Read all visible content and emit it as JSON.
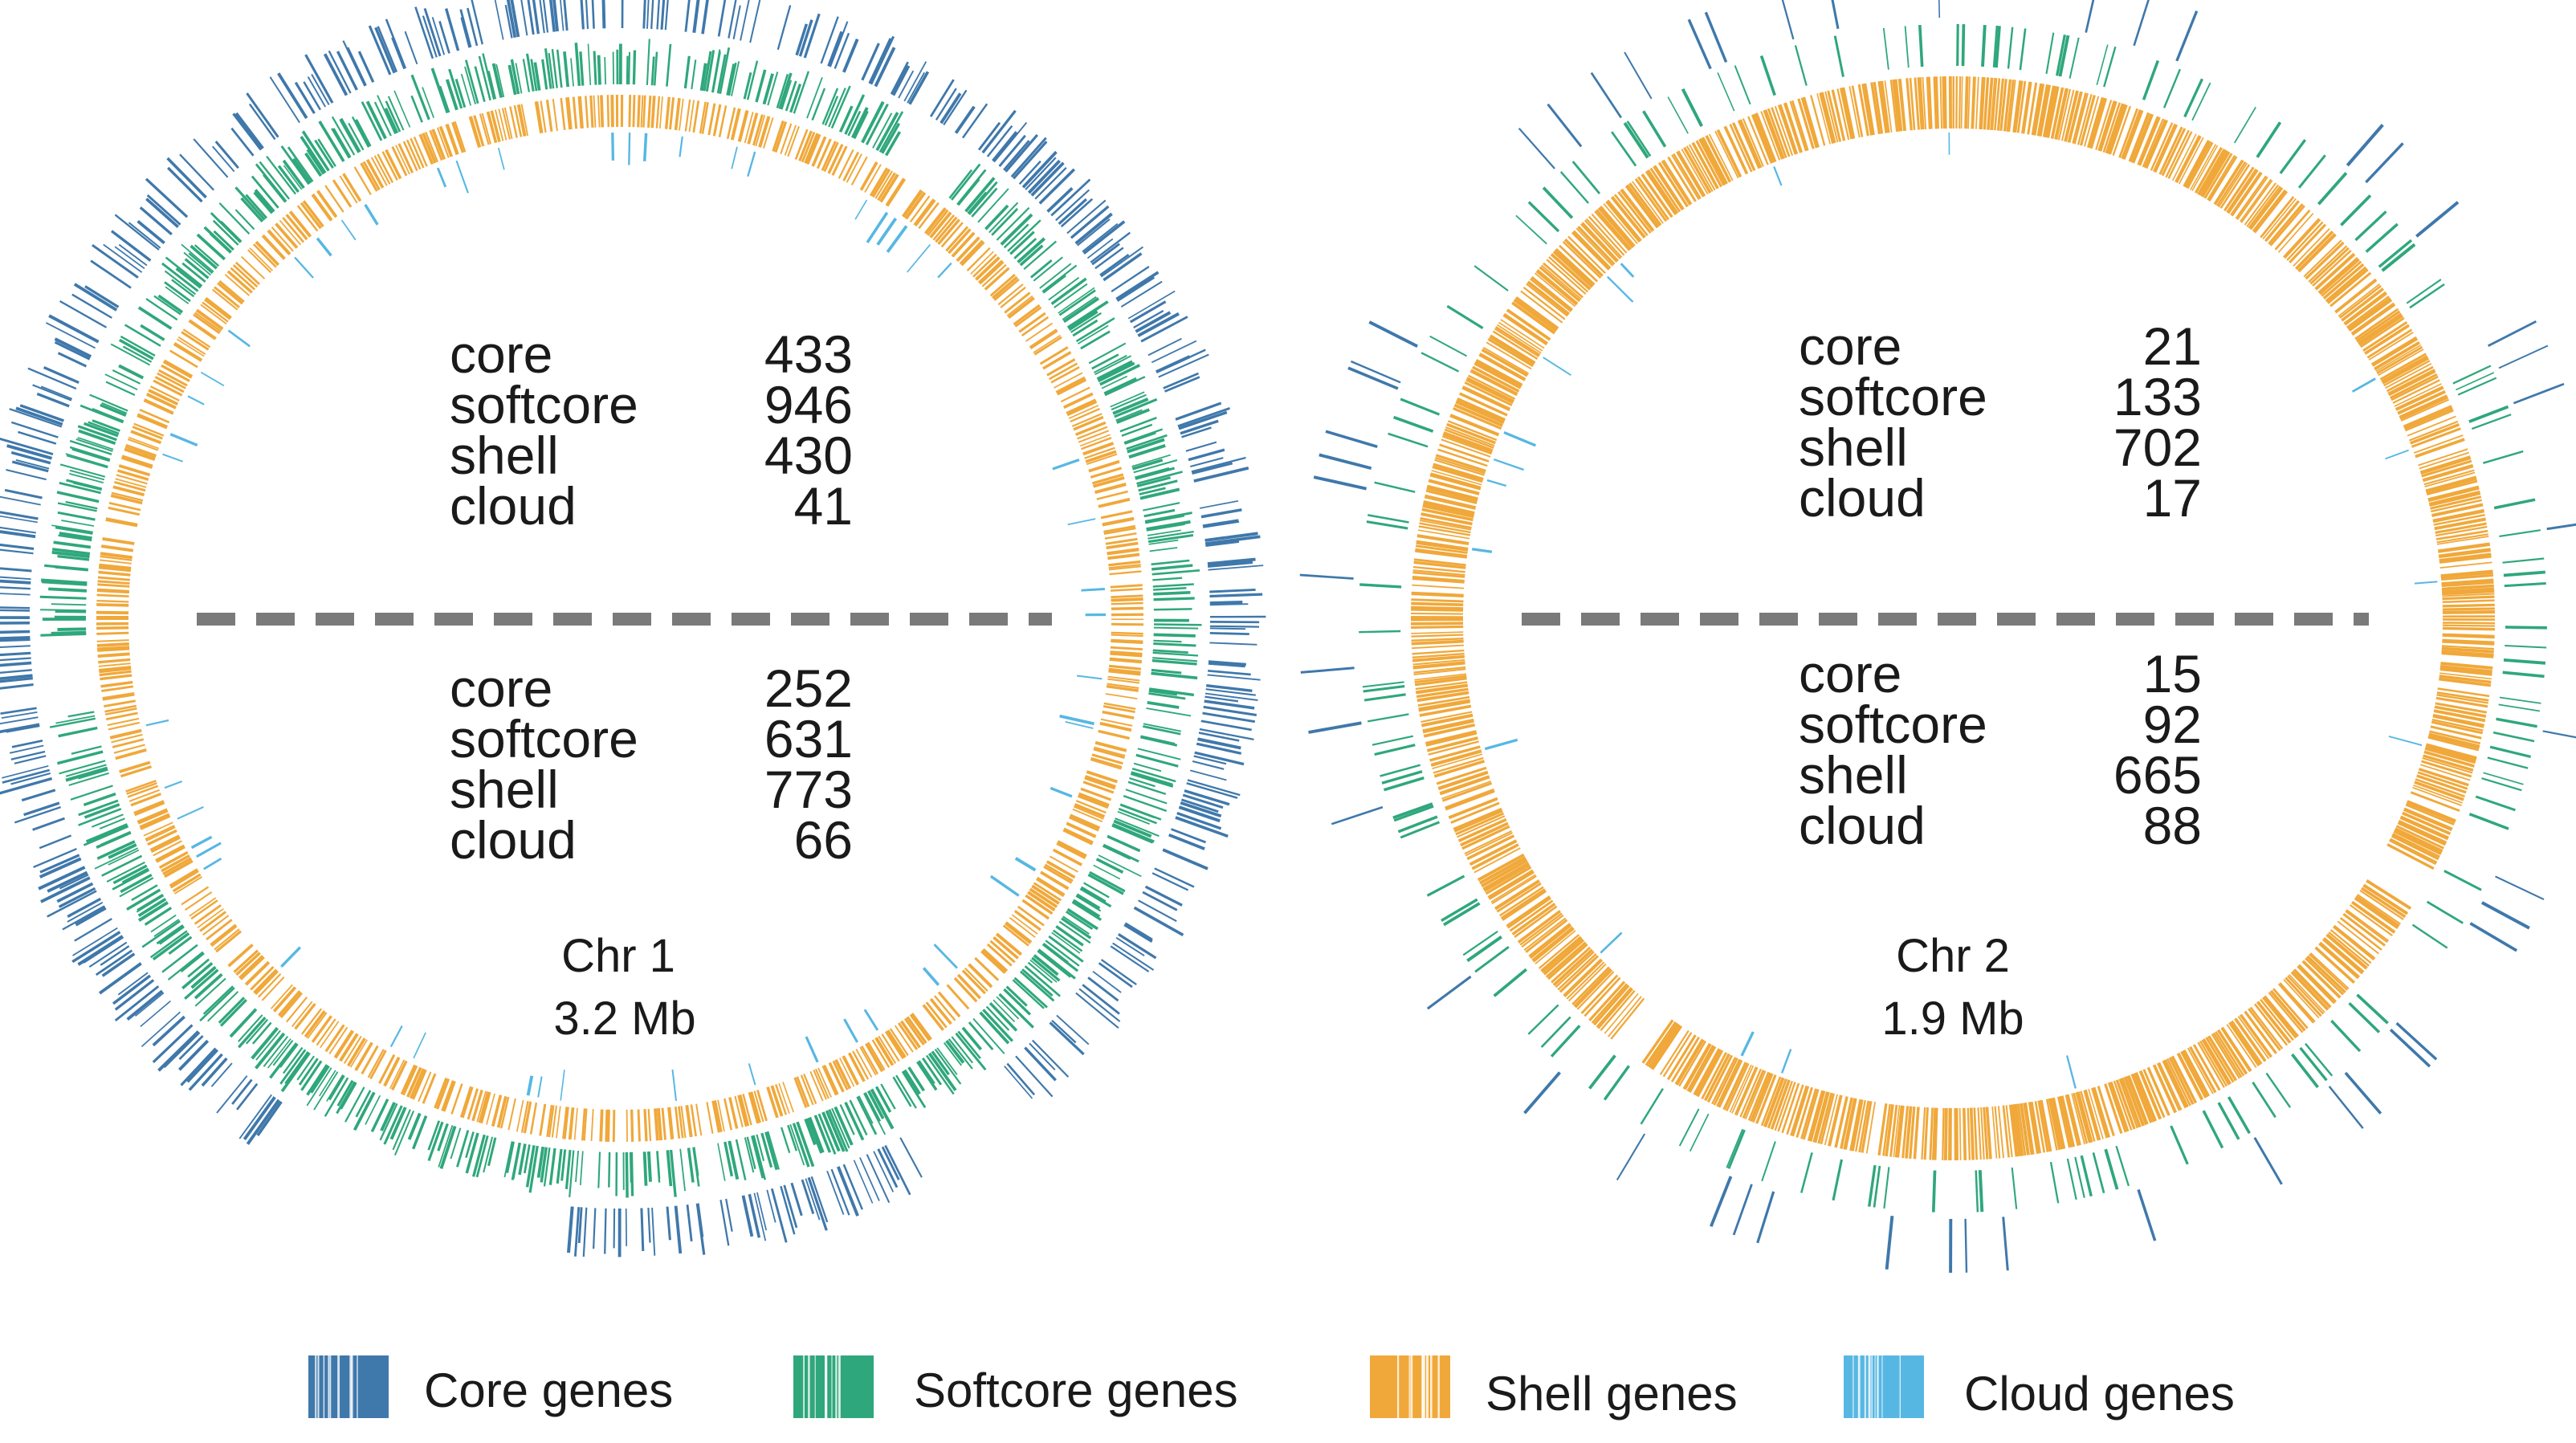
{
  "chart_data": [
    {
      "type": "circos",
      "name": "Chr 1",
      "size": "3.2 Mb",
      "upper": {
        "rows": [
          {
            "label": "core",
            "value": "433"
          },
          {
            "label": "softcore",
            "value": "946"
          },
          {
            "label": "shell",
            "value": "430"
          },
          {
            "label": "cloud",
            "value": "41"
          }
        ]
      },
      "lower": {
        "rows": [
          {
            "label": "core",
            "value": "252"
          },
          {
            "label": "softcore",
            "value": "631"
          },
          {
            "label": "shell",
            "value": "773"
          },
          {
            "label": "cloud",
            "value": "66"
          }
        ]
      }
    },
    {
      "type": "circos",
      "name": "Chr 2",
      "size": "1.9 Mb",
      "upper": {
        "rows": [
          {
            "label": "core",
            "value": "21"
          },
          {
            "label": "softcore",
            "value": "133"
          },
          {
            "label": "shell",
            "value": "702"
          },
          {
            "label": "cloud",
            "value": "17"
          }
        ]
      },
      "lower": {
        "rows": [
          {
            "label": "core",
            "value": "15"
          },
          {
            "label": "softcore",
            "value": "92"
          },
          {
            "label": "shell",
            "value": "665"
          },
          {
            "label": "cloud",
            "value": "88"
          }
        ]
      }
    }
  ],
  "legend": [
    {
      "label": "Core genes",
      "color": "#3f78ab"
    },
    {
      "label": "Softcore genes",
      "color": "#2fa77c"
    },
    {
      "label": "Shell genes",
      "color": "#f0a83a"
    },
    {
      "label": "Cloud genes",
      "color": "#57b7e3"
    }
  ]
}
